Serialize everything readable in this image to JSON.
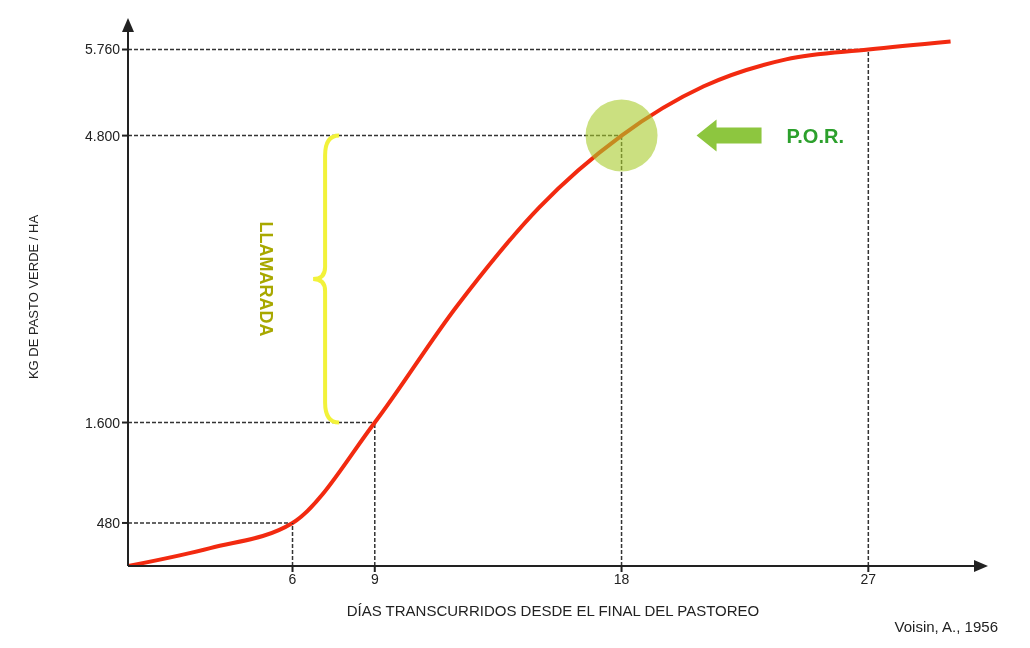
{
  "chart_data": {
    "type": "line",
    "xlabel": "DÍAS TRANSCURRIDOS DESDE EL FINAL DEL PASTOREO",
    "ylabel": "KG DE PASTO VERDE / HA",
    "xlim": [
      0,
      31
    ],
    "xticks": [
      6,
      9,
      18,
      27
    ],
    "ylim": [
      0,
      6000
    ],
    "yticks": [
      480,
      {
        "value": 1600,
        "label": "1.600"
      },
      {
        "value": 4800,
        "label": "4.800"
      },
      {
        "value": 5760,
        "label": "5.760"
      }
    ],
    "line_style": "solid",
    "series": [
      {
        "type": "scatter",
        "color": "#a8cc2c",
        "x": [
          18
        ],
        "values": [
          4800
        ]
      },
      {
        "color": "#f22a10",
        "x": [
          0,
          3,
          6,
          9,
          12,
          15,
          18,
          21,
          24,
          27,
          30
        ],
        "values": [
          0,
          200,
          480,
          1600,
          2900,
          4000,
          4800,
          5350,
          5650,
          5760,
          5850
        ]
      },
      {
        "color": "#333333",
        "line_style": "dotted",
        "x": [
          6,
          6
        ],
        "values": [
          0,
          480
        ]
      }
    ],
    "ref_lines": [
      {
        "axis": "x",
        "value": 9,
        "line_style": "dotted"
      },
      {
        "axis": "x",
        "value": 18,
        "line_style": "dotted"
      },
      {
        "axis": "x",
        "value": 27,
        "line_style": "dotted"
      },
      {
        "axis": "y",
        "value": 480,
        "line_style": "dotted"
      },
      {
        "axis": "y",
        "value": 1600,
        "line_style": "dotted"
      },
      {
        "axis": "y",
        "value": 4800,
        "line_style": "dotted"
      },
      {
        "axis": "y",
        "value": 5760,
        "line_style": "dotted"
      }
    ],
    "annotations": [
      "LLAMARADA",
      "P.O.R.",
      "Voisin, A., 1956"
    ]
  }
}
